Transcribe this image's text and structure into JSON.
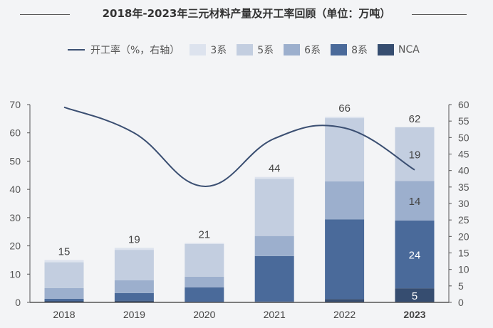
{
  "chart_data": {
    "type": "bar",
    "title": "2018年-2023年三元材料产量及开工率回顾（单位：万吨）",
    "stacked": true,
    "categories": [
      "2018",
      "2019",
      "2020",
      "2021",
      "2022",
      "2023"
    ],
    "series": [
      {
        "name": "NCA",
        "values": [
          0.5,
          0.6,
          0.1,
          0.3,
          1.2,
          5
        ],
        "color": "#364d70"
      },
      {
        "name": "8系",
        "values": [
          0.8,
          2.7,
          5.2,
          16.1,
          28.2,
          24
        ],
        "color": "#4a6a9a"
      },
      {
        "name": "6系",
        "values": [
          3.8,
          4.5,
          3.8,
          7.1,
          13.4,
          14
        ],
        "color": "#9cafcd"
      },
      {
        "name": "5系",
        "values": [
          9.1,
          10.8,
          11.6,
          20.2,
          22.4,
          19
        ],
        "color": "#c3cee0"
      },
      {
        "name": "3系",
        "values": [
          0.8,
          0.7,
          0.3,
          0.7,
          0.5,
          0
        ],
        "color": "#dde3ee"
      }
    ],
    "totals": [
      "15",
      "19",
      "21",
      "44",
      "66",
      "62"
    ],
    "segment_labels_2023": {
      "NCA": "5",
      "8系": "24",
      "6系": "14",
      "5系": "19"
    },
    "line": {
      "name": "开工率（%，右轴）",
      "values": [
        59.2,
        51.4,
        35.2,
        49.7,
        52.9,
        40.2
      ],
      "color": "#3b4f72",
      "axis": "right"
    },
    "y_left": {
      "range": [
        0,
        70
      ],
      "ticks": [
        "0",
        "10",
        "20",
        "30",
        "40",
        "50",
        "60",
        "70"
      ]
    },
    "y_right": {
      "range": [
        0,
        60
      ],
      "ticks": [
        "0",
        "5",
        "10",
        "15",
        "20",
        "25",
        "30",
        "35",
        "40",
        "45",
        "50",
        "55",
        "60"
      ]
    },
    "legend": [
      "开工率（%，右轴）",
      "3系",
      "5系",
      "6系",
      "8系",
      "NCA"
    ],
    "legend_position": "top",
    "grid": false
  }
}
